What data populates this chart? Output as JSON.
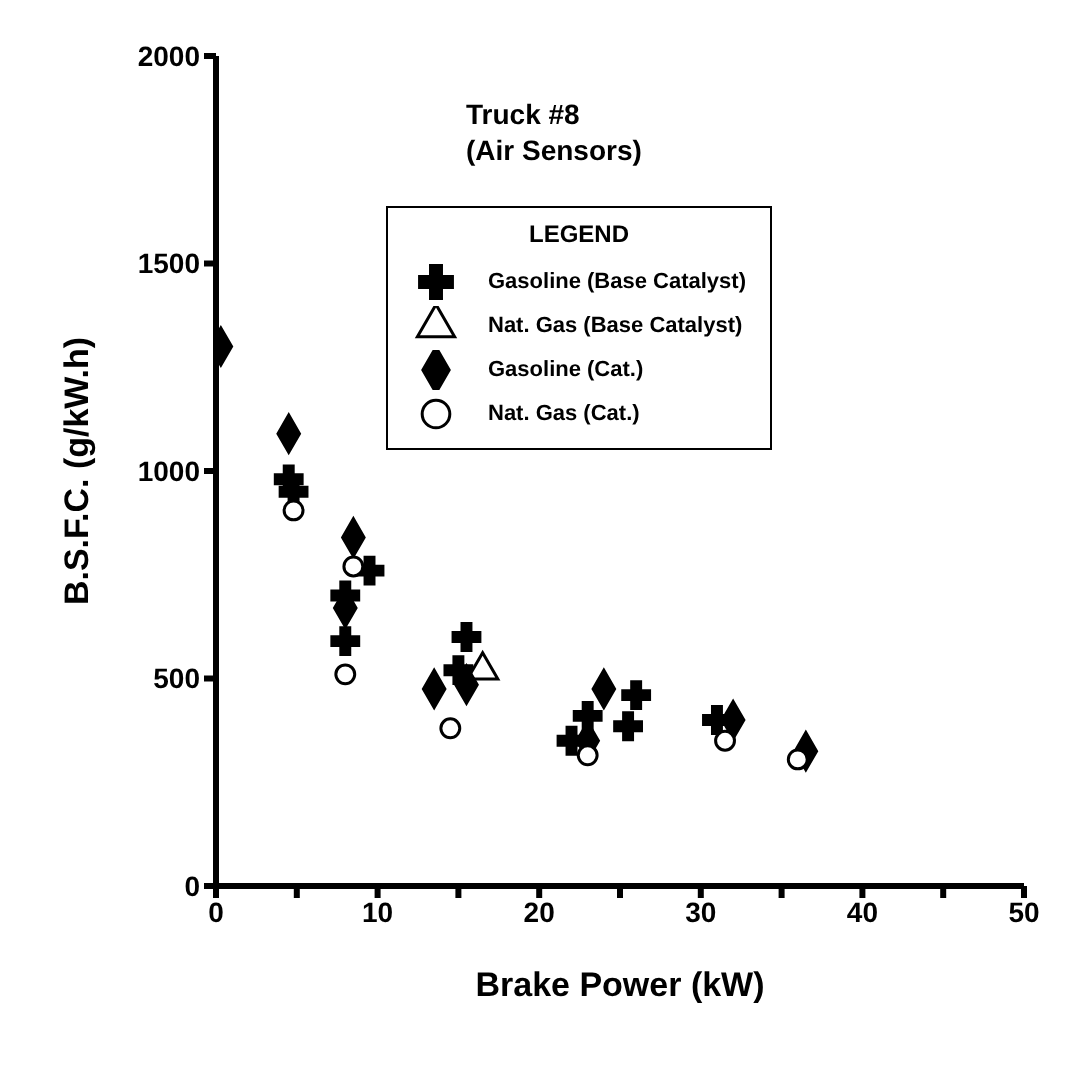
{
  "chart_data": {
    "type": "scatter",
    "title": "Truck #8",
    "subtitle": "(Air Sensors)",
    "xlabel": "Brake Power (kW)",
    "ylabel": "B.S.F.C. (g/kW.h)",
    "legend_title": "LEGEND",
    "legend": "top right",
    "grid": false,
    "xlim": [
      0,
      50
    ],
    "xticks": [
      0,
      {
        "value": 5,
        "label": null
      },
      10,
      {
        "value": 15,
        "label": null
      },
      20,
      {
        "value": 25,
        "label": null
      },
      30,
      {
        "value": 35,
        "label": null
      },
      40,
      {
        "value": 45,
        "label": null
      },
      50
    ],
    "ylim": [
      0,
      2000
    ],
    "yticks": [
      0,
      500,
      1000,
      1500,
      2000
    ],
    "series": [
      {
        "name": "Gasoline (Base Catalyst)",
        "color": "#000000",
        "marker": "cross",
        "x": [
          4.5,
          4.8,
          8,
          9.5,
          8,
          15.5,
          15,
          22,
          23,
          26,
          25.5,
          31
        ],
        "values": [
          980,
          950,
          700,
          760,
          590,
          600,
          520,
          350,
          410,
          460,
          385,
          400
        ]
      },
      {
        "name": "Nat. Gas (Base Catalyst)",
        "color": "#000000",
        "marker": "triangle",
        "x": [
          16.5
        ],
        "values": [
          520
        ]
      },
      {
        "name": "Gasoline (Cat.)",
        "color": "#000000",
        "marker": "diamond",
        "x": [
          0.3,
          4.5,
          8.5,
          8,
          13.5,
          15.5,
          24,
          23,
          32,
          36.5
        ],
        "values": [
          1300,
          1090,
          840,
          670,
          475,
          485,
          475,
          350,
          400,
          325
        ]
      },
      {
        "name": "Nat. Gas (Cat.)",
        "color": "#000000",
        "marker": "circle",
        "x": [
          4.8,
          8.5,
          8,
          14.5,
          23,
          31.5,
          36
        ],
        "values": [
          905,
          770,
          510,
          380,
          315,
          350,
          305
        ]
      }
    ]
  }
}
